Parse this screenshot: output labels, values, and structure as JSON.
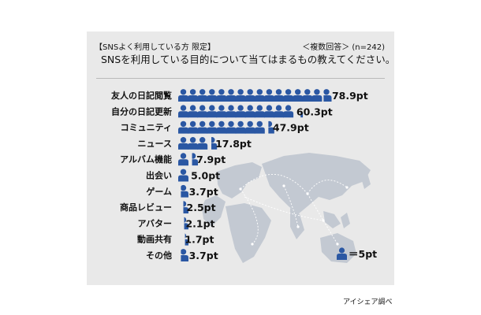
{
  "header": {
    "left": "【SNSよく利用している方 限定】",
    "right": "＜複数回答＞ (n=242)",
    "question": "SNSを利用している目的について当てはまるもの教えてください。"
  },
  "legend": {
    "label": "＝5pt",
    "icon": "person-icon"
  },
  "source": "アイシェア調べ",
  "colors": {
    "icon": "#2a57a3",
    "panel": "#e9e9e9",
    "map": "#c3c9d2"
  },
  "chart_data": {
    "type": "bar",
    "unit": "pt",
    "icon_value": 5,
    "categories": [
      "友人の日記閲覧",
      "自分の日記更新",
      "コミュニティ",
      "ニュース",
      "アルバム機能",
      "出会い",
      "ゲーム",
      "商品レビュー",
      "アバター",
      "動画共有",
      "その他"
    ],
    "values": [
      78.9,
      60.3,
      47.9,
      17.8,
      7.9,
      5.0,
      3.7,
      2.5,
      2.1,
      1.7,
      3.7
    ],
    "labels": [
      "78.9pt",
      "60.3pt",
      "47.9pt",
      "17.8pt",
      "7.9pt",
      "5.0pt",
      "3.7pt",
      "2.5pt",
      "2.1pt",
      "1.7pt",
      "3.7pt"
    ]
  }
}
